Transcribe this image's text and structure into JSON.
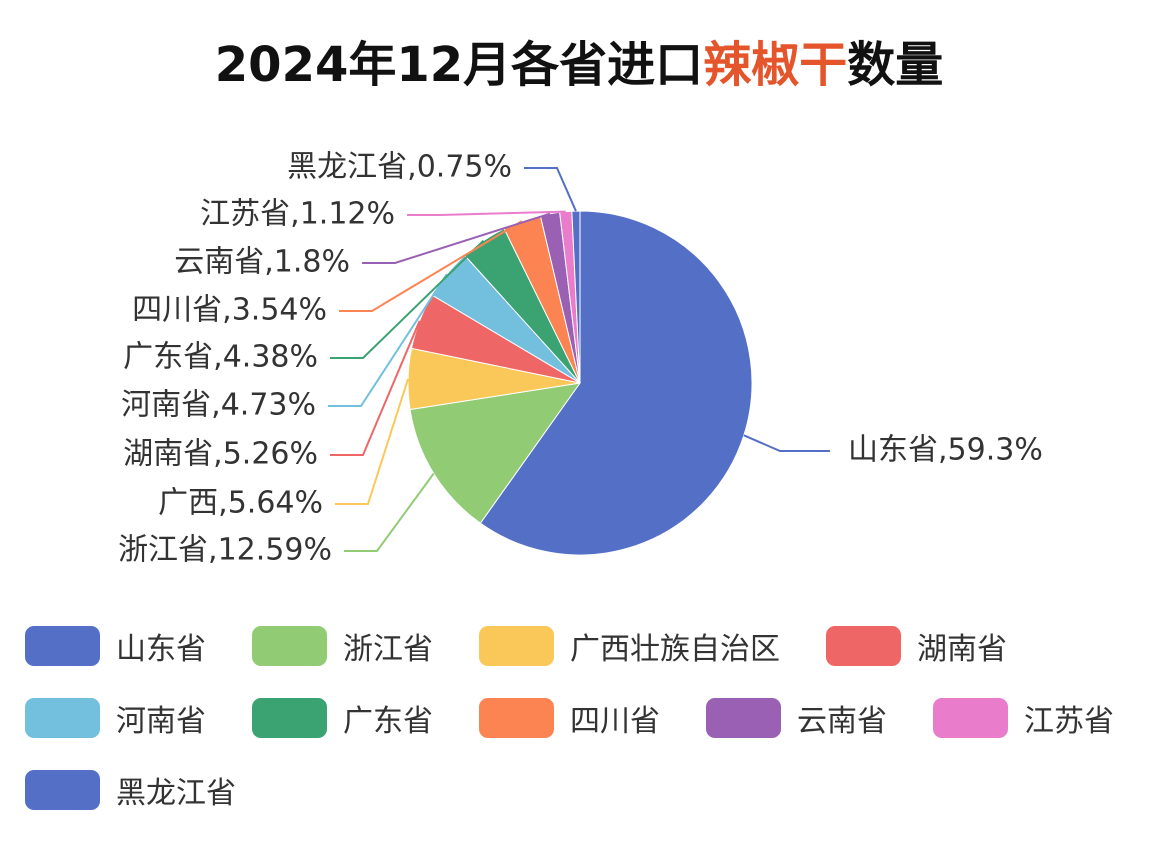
{
  "chart_data": {
    "type": "pie",
    "title": [
      "2024年12月各省进口",
      "辣椒干",
      "数量"
    ],
    "title_colors": [
      "#111111",
      "#e4552b",
      "#111111"
    ],
    "categories": [
      "山东省",
      "浙江省",
      "广西壮族自治区",
      "湖南省",
      "河南省",
      "广东省",
      "四川省",
      "云南省",
      "江苏省",
      "黑龙江省"
    ],
    "values": [
      59.3,
      12.59,
      5.64,
      5.26,
      4.73,
      4.38,
      3.54,
      1.8,
      1.12,
      0.75
    ],
    "value_labels": [
      "山东省,59.3%",
      "浙江省,12.59%",
      "广西,5.64%",
      "湖南省,5.26%",
      "河南省,4.73%",
      "广东省,4.38%",
      "四川省,3.54%",
      "云南省,1.8%",
      "江苏省,1.12%",
      "黑龙江省,0.75%"
    ],
    "colors": [
      "#5470c6",
      "#91cc75",
      "#fac858",
      "#ee6666",
      "#73c0de",
      "#3ba272",
      "#fc8452",
      "#9a60b4",
      "#ea7ccc",
      "#5470c6"
    ]
  }
}
